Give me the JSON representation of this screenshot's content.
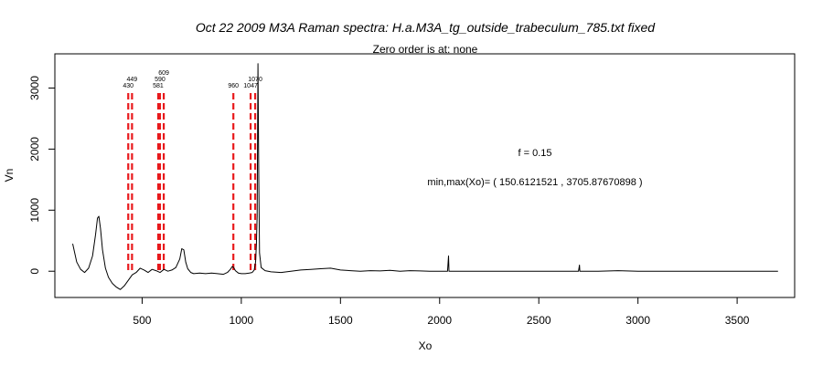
{
  "chart_data": {
    "type": "line",
    "title": "Oct 22 2009 M3A Raman spectra: H.a.M3A_tg_outside_trabeculum_785.txt fixed",
    "subtitle": "Zero order is at:  none",
    "xlabel": "Xo",
    "ylabel": "Vn",
    "xlim": [
      60,
      3790
    ],
    "ylim": [
      -430,
      3560
    ],
    "x_ticks": [
      500,
      1000,
      1500,
      2000,
      2500,
      3000,
      3500
    ],
    "y_ticks": [
      0,
      1000,
      2000,
      3000
    ],
    "grid": false,
    "annotations": [
      "f =  0.15",
      "min,max(Xo)= ( 150.6121521 , 3705.87670898 )"
    ],
    "peak_markers": [
      {
        "x": 430,
        "label": "430"
      },
      {
        "x": 449,
        "label": "449"
      },
      {
        "x": 581,
        "label": "581"
      },
      {
        "x": 590,
        "label": "590"
      },
      {
        "x": 609,
        "label": "609"
      },
      {
        "x": 960,
        "label": "960"
      },
      {
        "x": 1047,
        "label": "1047"
      },
      {
        "x": 1070,
        "label": "1070"
      }
    ],
    "series": [
      {
        "color": "#000000",
        "x": [
          150,
          170,
          190,
          210,
          230,
          250,
          265,
          275,
          282,
          290,
          300,
          315,
          330,
          350,
          370,
          390,
          410,
          430,
          450,
          470,
          490,
          510,
          530,
          550,
          570,
          590,
          610,
          630,
          650,
          670,
          690,
          700,
          710,
          720,
          730,
          745,
          760,
          790,
          820,
          850,
          880,
          910,
          930,
          945,
          955,
          962,
          970,
          985,
          1000,
          1020,
          1040,
          1055,
          1065,
          1072,
          1076,
          1080,
          1084,
          1088,
          1092,
          1100,
          1120,
          1150,
          1200,
          1250,
          1300,
          1350,
          1400,
          1450,
          1500,
          1550,
          1600,
          1650,
          1700,
          1750,
          1800,
          1850,
          1900,
          1950,
          2000,
          2040,
          2045,
          2047,
          2050,
          2100,
          2200,
          2300,
          2400,
          2500,
          2600,
          2700,
          2705,
          2707,
          2710,
          2800,
          2900,
          3000,
          3100,
          3200,
          3300,
          3400,
          3500,
          3600,
          3706
        ],
        "y": [
          450,
          150,
          30,
          -20,
          50,
          250,
          600,
          870,
          900,
          700,
          350,
          50,
          -100,
          -200,
          -260,
          -300,
          -240,
          -150,
          -60,
          -20,
          50,
          20,
          -20,
          30,
          10,
          -20,
          30,
          0,
          20,
          60,
          200,
          370,
          350,
          150,
          40,
          -20,
          -40,
          -30,
          -40,
          -30,
          -40,
          -50,
          -20,
          30,
          80,
          60,
          10,
          -30,
          -40,
          -40,
          -30,
          -20,
          20,
          150,
          450,
          900,
          3400,
          1500,
          300,
          60,
          10,
          -10,
          -20,
          0,
          20,
          30,
          40,
          50,
          20,
          10,
          0,
          10,
          5,
          15,
          0,
          10,
          5,
          0,
          0,
          0,
          250,
          0,
          0,
          0,
          0,
          0,
          0,
          0,
          0,
          0,
          100,
          0,
          0,
          0,
          10,
          0,
          0,
          0,
          0,
          0,
          0,
          0,
          0
        ]
      }
    ]
  }
}
